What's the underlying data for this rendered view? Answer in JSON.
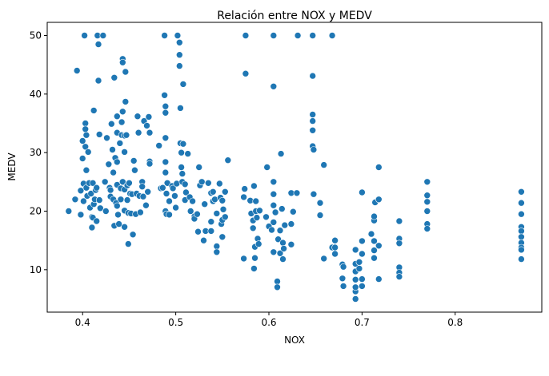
{
  "chart_data": {
    "type": "scatter",
    "title": "Relación entre NOX y MEDV",
    "xlabel": "NOX",
    "ylabel": "MEDV",
    "xlim": [
      0.362,
      0.893
    ],
    "ylim": [
      2.75,
      52.25
    ],
    "x_ticks": [
      0.4,
      0.5,
      0.6,
      0.7,
      0.8
    ],
    "x_tick_labels": [
      "0.4",
      "0.5",
      "0.6",
      "0.7",
      "0.8"
    ],
    "y_ticks": [
      10,
      20,
      30,
      40,
      50
    ],
    "y_tick_labels": [
      "10",
      "20",
      "30",
      "40",
      "50"
    ],
    "grid": false,
    "marker_color": "#1f77b4",
    "points": [
      [
        0.385,
        20.0
      ],
      [
        0.392,
        22.0
      ],
      [
        0.394,
        44.0
      ],
      [
        0.398,
        19.4
      ],
      [
        0.398,
        23.5
      ],
      [
        0.4,
        29.0
      ],
      [
        0.4,
        32.0
      ],
      [
        0.401,
        24.7
      ],
      [
        0.401,
        21.7
      ],
      [
        0.402,
        50.0
      ],
      [
        0.403,
        35.0
      ],
      [
        0.403,
        34.0
      ],
      [
        0.403,
        31.0
      ],
      [
        0.404,
        27.0
      ],
      [
        0.404,
        33.0
      ],
      [
        0.404,
        24.0
      ],
      [
        0.405,
        22.6
      ],
      [
        0.406,
        30.1
      ],
      [
        0.407,
        24.8
      ],
      [
        0.408,
        20.6
      ],
      [
        0.409,
        23.0
      ],
      [
        0.41,
        19.0
      ],
      [
        0.41,
        17.2
      ],
      [
        0.411,
        24.8
      ],
      [
        0.411,
        18.9
      ],
      [
        0.412,
        37.2
      ],
      [
        0.412,
        21.2
      ],
      [
        0.413,
        22.0
      ],
      [
        0.414,
        23.6
      ],
      [
        0.415,
        18.3
      ],
      [
        0.415,
        24.0
      ],
      [
        0.416,
        50.0
      ],
      [
        0.417,
        48.5
      ],
      [
        0.417,
        42.3
      ],
      [
        0.418,
        33.1
      ],
      [
        0.418,
        21.9
      ],
      [
        0.419,
        20.5
      ],
      [
        0.422,
        50.0
      ],
      [
        0.424,
        25.0
      ],
      [
        0.425,
        20.0
      ],
      [
        0.426,
        32.5
      ],
      [
        0.428,
        28.0
      ],
      [
        0.429,
        24.0
      ],
      [
        0.43,
        23.6
      ],
      [
        0.43,
        22.5
      ],
      [
        0.431,
        34.9
      ],
      [
        0.432,
        30.5
      ],
      [
        0.433,
        26.6
      ],
      [
        0.433,
        22.0
      ],
      [
        0.434,
        42.8
      ],
      [
        0.434,
        17.5
      ],
      [
        0.435,
        29.1
      ],
      [
        0.436,
        21.4
      ],
      [
        0.437,
        36.2
      ],
      [
        0.437,
        33.4
      ],
      [
        0.437,
        28.4
      ],
      [
        0.437,
        24.5
      ],
      [
        0.437,
        20.9
      ],
      [
        0.438,
        19.4
      ],
      [
        0.439,
        17.8
      ],
      [
        0.44,
        31.6
      ],
      [
        0.441,
        23.9
      ],
      [
        0.441,
        22.0
      ],
      [
        0.442,
        35.2
      ],
      [
        0.442,
        33.0
      ],
      [
        0.443,
        46.0
      ],
      [
        0.443,
        45.4
      ],
      [
        0.443,
        37.0
      ],
      [
        0.443,
        25.0
      ],
      [
        0.445,
        32.9
      ],
      [
        0.445,
        30.1
      ],
      [
        0.445,
        23.7
      ],
      [
        0.445,
        20.1
      ],
      [
        0.445,
        17.3
      ],
      [
        0.446,
        43.8
      ],
      [
        0.446,
        38.7
      ],
      [
        0.447,
        33.0
      ],
      [
        0.448,
        24.4
      ],
      [
        0.448,
        21.9
      ],
      [
        0.449,
        19.7
      ],
      [
        0.449,
        14.4
      ],
      [
        0.45,
        24.8
      ],
      [
        0.451,
        23.0
      ],
      [
        0.452,
        19.6
      ],
      [
        0.453,
        22.9
      ],
      [
        0.454,
        16.0
      ],
      [
        0.455,
        28.6
      ],
      [
        0.456,
        27.0
      ],
      [
        0.457,
        19.5
      ],
      [
        0.458,
        23.0
      ],
      [
        0.459,
        36.2
      ],
      [
        0.46,
        33.4
      ],
      [
        0.461,
        22.6
      ],
      [
        0.462,
        19.8
      ],
      [
        0.464,
        25.0
      ],
      [
        0.464,
        24.2
      ],
      [
        0.465,
        22.5
      ],
      [
        0.466,
        35.4
      ],
      [
        0.468,
        21.0
      ],
      [
        0.469,
        34.6
      ],
      [
        0.47,
        23.3
      ],
      [
        0.471,
        36.1
      ],
      [
        0.472,
        33.4
      ],
      [
        0.472,
        28.5
      ],
      [
        0.472,
        28.1
      ],
      [
        0.482,
        31.2
      ],
      [
        0.484,
        23.9
      ],
      [
        0.486,
        24.0
      ],
      [
        0.488,
        50.0
      ],
      [
        0.488,
        39.8
      ],
      [
        0.489,
        37.9
      ],
      [
        0.489,
        36.8
      ],
      [
        0.489,
        32.5
      ],
      [
        0.489,
        28.4
      ],
      [
        0.489,
        26.6
      ],
      [
        0.489,
        20.0
      ],
      [
        0.49,
        23.0
      ],
      [
        0.49,
        19.5
      ],
      [
        0.491,
        24.8
      ],
      [
        0.493,
        21.7
      ],
      [
        0.493,
        19.4
      ],
      [
        0.496,
        24.3
      ],
      [
        0.497,
        23.9
      ],
      [
        0.499,
        22.6
      ],
      [
        0.5,
        20.6
      ],
      [
        0.501,
        24.7
      ],
      [
        0.502,
        50.0
      ],
      [
        0.504,
        48.8
      ],
      [
        0.504,
        46.7
      ],
      [
        0.504,
        44.8
      ],
      [
        0.505,
        37.6
      ],
      [
        0.505,
        31.6
      ],
      [
        0.506,
        30.0
      ],
      [
        0.506,
        27.5
      ],
      [
        0.507,
        26.4
      ],
      [
        0.507,
        25.0
      ],
      [
        0.508,
        41.7
      ],
      [
        0.508,
        31.5
      ],
      [
        0.51,
        24.6
      ],
      [
        0.51,
        21.9
      ],
      [
        0.511,
        23.2
      ],
      [
        0.513,
        29.8
      ],
      [
        0.515,
        22.4
      ],
      [
        0.516,
        20.0
      ],
      [
        0.518,
        21.7
      ],
      [
        0.52,
        19.1
      ],
      [
        0.52,
        18.7
      ],
      [
        0.523,
        19.5
      ],
      [
        0.524,
        16.5
      ],
      [
        0.525,
        27.5
      ],
      [
        0.526,
        24.4
      ],
      [
        0.528,
        25.0
      ],
      [
        0.53,
        15.0
      ],
      [
        0.531,
        21.2
      ],
      [
        0.532,
        16.6
      ],
      [
        0.535,
        24.8
      ],
      [
        0.538,
        23.1
      ],
      [
        0.538,
        18.2
      ],
      [
        0.538,
        16.6
      ],
      [
        0.54,
        23.3
      ],
      [
        0.54,
        21.7
      ],
      [
        0.542,
        22.0
      ],
      [
        0.544,
        19.6
      ],
      [
        0.544,
        14.0
      ],
      [
        0.544,
        13.0
      ],
      [
        0.547,
        24.7
      ],
      [
        0.548,
        22.3
      ],
      [
        0.549,
        17.8
      ],
      [
        0.55,
        21.8
      ],
      [
        0.55,
        18.5
      ],
      [
        0.55,
        15.6
      ],
      [
        0.551,
        20.3
      ],
      [
        0.553,
        23.3
      ],
      [
        0.553,
        19.0
      ],
      [
        0.556,
        28.7
      ],
      [
        0.573,
        11.9
      ],
      [
        0.573,
        22.4
      ],
      [
        0.574,
        23.8
      ],
      [
        0.575,
        50.0
      ],
      [
        0.575,
        43.5
      ],
      [
        0.58,
        21.8
      ],
      [
        0.581,
        19.6
      ],
      [
        0.583,
        18.4
      ],
      [
        0.583,
        17.1
      ],
      [
        0.584,
        24.3
      ],
      [
        0.584,
        10.2
      ],
      [
        0.585,
        13.9
      ],
      [
        0.585,
        12.0
      ],
      [
        0.586,
        21.7
      ],
      [
        0.586,
        20.0
      ],
      [
        0.587,
        18.9
      ],
      [
        0.588,
        15.3
      ],
      [
        0.589,
        14.4
      ],
      [
        0.59,
        20.1
      ],
      [
        0.597,
        19.0
      ],
      [
        0.598,
        27.5
      ],
      [
        0.6,
        17.4
      ],
      [
        0.603,
        16.8
      ],
      [
        0.605,
        50.0
      ],
      [
        0.605,
        41.3
      ],
      [
        0.605,
        25.0
      ],
      [
        0.605,
        22.9
      ],
      [
        0.605,
        21.0
      ],
      [
        0.605,
        18.1
      ],
      [
        0.605,
        13.0
      ],
      [
        0.607,
        19.8
      ],
      [
        0.609,
        8.0
      ],
      [
        0.609,
        7.0
      ],
      [
        0.61,
        15.2
      ],
      [
        0.612,
        12.8
      ],
      [
        0.612,
        16.7
      ],
      [
        0.613,
        29.8
      ],
      [
        0.614,
        20.4
      ],
      [
        0.615,
        11.8
      ],
      [
        0.615,
        14.6
      ],
      [
        0.616,
        13.6
      ],
      [
        0.617,
        17.6
      ],
      [
        0.624,
        23.1
      ],
      [
        0.624,
        17.8
      ],
      [
        0.624,
        14.3
      ],
      [
        0.626,
        19.9
      ],
      [
        0.63,
        23.1
      ],
      [
        0.631,
        50.0
      ],
      [
        0.647,
        50.0
      ],
      [
        0.647,
        43.1
      ],
      [
        0.647,
        36.5
      ],
      [
        0.647,
        35.4
      ],
      [
        0.647,
        33.8
      ],
      [
        0.647,
        31.1
      ],
      [
        0.648,
        30.5
      ],
      [
        0.648,
        22.9
      ],
      [
        0.655,
        21.4
      ],
      [
        0.655,
        19.3
      ],
      [
        0.659,
        11.9
      ],
      [
        0.659,
        27.9
      ],
      [
        0.668,
        50.0
      ],
      [
        0.668,
        13.8
      ],
      [
        0.671,
        13.8
      ],
      [
        0.671,
        15.0
      ],
      [
        0.671,
        12.7
      ],
      [
        0.679,
        10.9
      ],
      [
        0.679,
        8.5
      ],
      [
        0.68,
        7.2
      ],
      [
        0.68,
        10.5
      ],
      [
        0.693,
        5.0
      ],
      [
        0.693,
        6.3
      ],
      [
        0.693,
        7.0
      ],
      [
        0.693,
        8.3
      ],
      [
        0.693,
        9.7
      ],
      [
        0.693,
        11.0
      ],
      [
        0.693,
        13.4
      ],
      [
        0.697,
        11.3
      ],
      [
        0.697,
        10.2
      ],
      [
        0.7,
        8.4
      ],
      [
        0.7,
        12.7
      ],
      [
        0.7,
        14.9
      ],
      [
        0.7,
        23.2
      ],
      [
        0.7,
        7.2
      ],
      [
        0.71,
        16.1
      ],
      [
        0.713,
        13.3
      ],
      [
        0.713,
        14.9
      ],
      [
        0.713,
        12.0
      ],
      [
        0.713,
        18.4
      ],
      [
        0.713,
        19.1
      ],
      [
        0.714,
        21.5
      ],
      [
        0.718,
        27.5
      ],
      [
        0.718,
        22.0
      ],
      [
        0.718,
        8.4
      ],
      [
        0.718,
        14.1
      ],
      [
        0.74,
        18.3
      ],
      [
        0.74,
        15.3
      ],
      [
        0.74,
        14.5
      ],
      [
        0.74,
        10.4
      ],
      [
        0.74,
        9.5
      ],
      [
        0.74,
        8.8
      ],
      [
        0.77,
        25.0
      ],
      [
        0.77,
        22.7
      ],
      [
        0.77,
        21.6
      ],
      [
        0.77,
        20.0
      ],
      [
        0.77,
        17.8
      ],
      [
        0.77,
        17.0
      ],
      [
        0.871,
        23.3
      ],
      [
        0.871,
        21.4
      ],
      [
        0.871,
        19.5
      ],
      [
        0.871,
        17.3
      ],
      [
        0.871,
        16.6
      ],
      [
        0.871,
        15.6
      ],
      [
        0.871,
        14.6
      ],
      [
        0.871,
        13.8
      ],
      [
        0.871,
        13.4
      ],
      [
        0.871,
        11.8
      ]
    ]
  }
}
